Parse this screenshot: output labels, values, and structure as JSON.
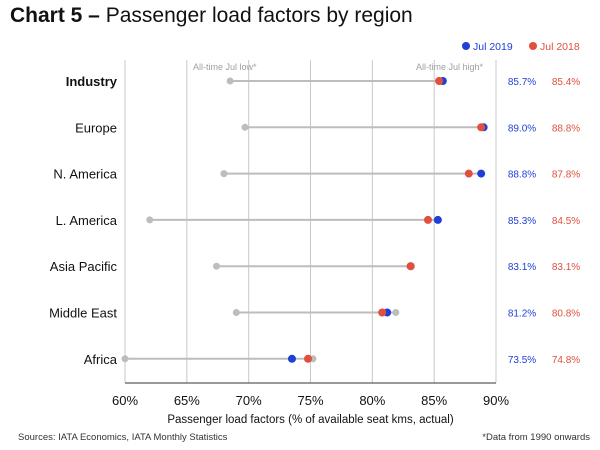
{
  "chart_data": {
    "type": "dumbbell",
    "title_lead": "Chart 5 –",
    "title_rest": "Passenger load factors by region",
    "xlabel": "Passenger load factors (% of available seat kms, actual)",
    "xlim": [
      60,
      90
    ],
    "x_ticks": [
      "60%",
      "65%",
      "70%",
      "75%",
      "80%",
      "85%",
      "90%"
    ],
    "legend": [
      {
        "name": "Jul 2019",
        "color": "#1f3fd6"
      },
      {
        "name": "Jul 2018",
        "color": "#e0503c"
      }
    ],
    "legend_position": "top-right",
    "annotations": {
      "low_label": "All-time Jul low*",
      "high_label": "All-time Jul high*"
    },
    "categories": [
      "Industry",
      "Europe",
      "N. America",
      "L. America",
      "Asia Pacific",
      "Middle East",
      "Africa"
    ],
    "bold_categories": [
      "Industry"
    ],
    "series": [
      {
        "name": "Jul 2019",
        "values": [
          85.7,
          89.0,
          88.8,
          85.3,
          83.1,
          81.2,
          73.5
        ]
      },
      {
        "name": "Jul 2018",
        "values": [
          85.4,
          88.8,
          87.8,
          84.5,
          83.1,
          80.8,
          74.8
        ]
      },
      {
        "name": "All-time Jul low",
        "values": [
          68.5,
          69.7,
          68.0,
          62.0,
          67.4,
          69.0,
          60.0
        ]
      },
      {
        "name": "All-time Jul high",
        "values": [
          85.7,
          89.0,
          88.8,
          85.3,
          83.1,
          81.9,
          75.2
        ]
      }
    ],
    "value_labels_2019": [
      "85.7%",
      "89.0%",
      "88.8%",
      "85.3%",
      "83.1%",
      "81.2%",
      "73.5%"
    ],
    "value_labels_2018": [
      "85.4%",
      "88.8%",
      "87.8%",
      "84.5%",
      "83.1%",
      "80.8%",
      "74.8%"
    ],
    "grid": true,
    "colors": {
      "jul2019": "#1f3fd6",
      "jul2018": "#e0503c",
      "range": "#bdbdbd",
      "grid": "#c9c9c9"
    }
  },
  "footer": {
    "sources": "Sources: IATA Economics, IATA Monthly Statistics",
    "footnote": "*Data from 1990 onwards"
  }
}
